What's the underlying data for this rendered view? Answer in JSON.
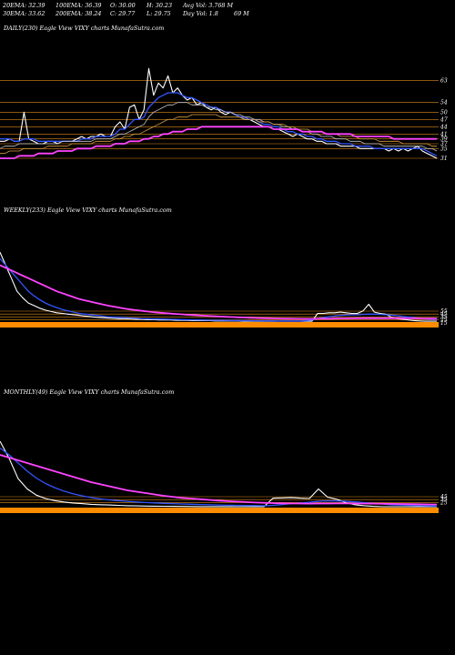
{
  "header": {
    "ema20": "20EMA: 32.39",
    "ema100": "100EMA: 36.39",
    "open": "O: 30.00",
    "high": "H: 30.23",
    "avgvol": "Avg Vol: 3.768 M",
    "ema30": "30EMA: 33.62",
    "ema200": "200EMA: 38.24",
    "close": "C: 29.77",
    "low": "L: 29.75",
    "dayvol": "Day Vol: 1.8",
    "dayvol_unit": "69 M"
  },
  "colors": {
    "price": "#ffffff",
    "ema_fast": "#3355ff",
    "ema_mid": "#c8c8c8",
    "ema_slow": "#d9a040",
    "ema_200": "#ff44ff",
    "levels": "#e08a1a",
    "volume": "#ff8c00"
  },
  "chart_data": [
    {
      "type": "line",
      "title": "DAILY(230) Eagle  View  VIXY charts MunafaSutra.com",
      "level_labels": [
        "63",
        "54",
        "50",
        "47",
        "44",
        "41",
        "39",
        "37",
        "35",
        "31"
      ],
      "levels": [
        63,
        54,
        50,
        47,
        44,
        41,
        39,
        37,
        35,
        31
      ],
      "ylim": [
        28,
        70
      ],
      "series": [
        {
          "key": "price",
          "values": [
            38,
            38,
            39,
            38,
            38,
            50,
            39,
            38,
            37,
            37,
            38,
            38,
            37,
            38,
            38,
            38,
            39,
            40,
            39,
            40,
            40,
            41,
            40,
            40,
            44,
            46,
            43,
            52,
            53,
            47,
            51,
            68,
            57,
            62,
            60,
            65,
            58,
            60,
            57,
            55,
            56,
            53,
            54,
            52,
            51,
            52,
            50,
            49,
            50,
            49,
            48,
            47,
            47,
            46,
            45,
            44,
            44,
            43,
            43,
            42,
            41,
            40,
            41,
            40,
            39,
            39,
            38,
            38,
            37,
            37,
            37,
            36,
            36,
            36,
            36,
            35,
            35,
            35,
            35,
            35,
            35,
            34,
            35,
            34,
            35,
            34,
            35,
            36,
            34,
            33,
            32,
            31
          ]
        },
        {
          "key": "ema_fast",
          "values": [
            39,
            39,
            39,
            38,
            38,
            39,
            39,
            39,
            38,
            38,
            38,
            38,
            38,
            38,
            38,
            38,
            38,
            39,
            39,
            39,
            40,
            40,
            40,
            40,
            41,
            43,
            43,
            45,
            47,
            47,
            48,
            52,
            54,
            56,
            57,
            58,
            58,
            58,
            57,
            56,
            56,
            55,
            54,
            53,
            52,
            52,
            51,
            50,
            50,
            49,
            48,
            48,
            47,
            47,
            46,
            45,
            45,
            44,
            44,
            43,
            42,
            42,
            41,
            41,
            40,
            40,
            39,
            39,
            38,
            38,
            38,
            37,
            37,
            37,
            36,
            36,
            36,
            36,
            35,
            35,
            35,
            35,
            35,
            35,
            35,
            35,
            35,
            35,
            35,
            34,
            33,
            32
          ]
        },
        {
          "key": "ema_mid",
          "values": [
            35,
            36,
            36,
            36,
            37,
            37,
            37,
            37,
            37,
            37,
            37,
            37,
            37,
            38,
            38,
            38,
            38,
            38,
            38,
            38,
            39,
            39,
            39,
            39,
            40,
            41,
            41,
            42,
            43,
            44,
            45,
            48,
            50,
            51,
            52,
            53,
            53,
            54,
            54,
            54,
            53,
            53,
            53,
            52,
            52,
            51,
            51,
            50,
            50,
            49,
            49,
            48,
            48,
            47,
            47,
            46,
            46,
            45,
            45,
            44,
            44,
            43,
            43,
            42,
            42,
            41,
            41,
            40,
            40,
            40,
            39,
            39,
            39,
            38,
            38,
            38,
            37,
            37,
            37,
            37,
            36,
            36,
            36,
            36,
            36,
            36,
            36,
            36,
            36,
            35,
            35,
            34
          ]
        },
        {
          "key": "ema_slow",
          "values": [
            33,
            33,
            34,
            34,
            34,
            35,
            35,
            35,
            35,
            35,
            36,
            36,
            36,
            36,
            36,
            37,
            37,
            37,
            37,
            37,
            38,
            38,
            38,
            38,
            39,
            39,
            40,
            40,
            41,
            41,
            42,
            43,
            44,
            45,
            46,
            47,
            47,
            48,
            48,
            48,
            49,
            49,
            49,
            49,
            49,
            49,
            48,
            48,
            48,
            48,
            48,
            47,
            47,
            47,
            46,
            46,
            46,
            45,
            45,
            45,
            44,
            44,
            43,
            43,
            43,
            42,
            42,
            42,
            41,
            41,
            41,
            40,
            40,
            40,
            40,
            39,
            39,
            39,
            39,
            38,
            38,
            38,
            38,
            38,
            37,
            37,
            37,
            37,
            37,
            37,
            36,
            36
          ]
        },
        {
          "key": "ema_200",
          "values": [
            31,
            31,
            31,
            31,
            32,
            32,
            32,
            32,
            33,
            33,
            33,
            33,
            34,
            34,
            34,
            34,
            35,
            35,
            35,
            35,
            36,
            36,
            36,
            36,
            37,
            37,
            37,
            38,
            38,
            38,
            39,
            39,
            40,
            40,
            41,
            41,
            42,
            42,
            42,
            43,
            43,
            43,
            44,
            44,
            44,
            44,
            44,
            44,
            44,
            44,
            44,
            44,
            44,
            44,
            44,
            44,
            44,
            43,
            43,
            43,
            43,
            43,
            43,
            42,
            42,
            42,
            42,
            42,
            41,
            41,
            41,
            41,
            41,
            41,
            40,
            40,
            40,
            40,
            40,
            40,
            40,
            40,
            39,
            39,
            39,
            39,
            39,
            39,
            39,
            39,
            39,
            39
          ]
        }
      ]
    },
    {
      "type": "line",
      "title": "WEEKLY(233) Eagle  View  VIXY charts MunafaSutra.com",
      "level_labels": [
        "55",
        "45",
        "35",
        "25",
        "15"
      ],
      "levels": [
        55,
        45,
        35,
        25,
        15
      ],
      "ylim": [
        0,
        1200
      ],
      "series": [
        {
          "key": "price",
          "values": [
            1100,
            900,
            700,
            500,
            400,
            320,
            280,
            240,
            210,
            190,
            170,
            160,
            150,
            140,
            130,
            120,
            110,
            100,
            95,
            90,
            85,
            80,
            80,
            75,
            70,
            70,
            65,
            65,
            60,
            60,
            60,
            55,
            55,
            55,
            50,
            50,
            50,
            50,
            45,
            45,
            45,
            45,
            45,
            40,
            40,
            40,
            40,
            40,
            40,
            40,
            40,
            40,
            40,
            40,
            40,
            40,
            160,
            160,
            170,
            170,
            180,
            170,
            160,
            160,
            200,
            300,
            180,
            160,
            150,
            100,
            80,
            70,
            60,
            50,
            45,
            40,
            40,
            40
          ]
        },
        {
          "key": "ema_fast",
          "values": [
            1000,
            900,
            800,
            700,
            600,
            500,
            430,
            370,
            320,
            280,
            250,
            220,
            200,
            180,
            160,
            150,
            140,
            130,
            120,
            110,
            105,
            100,
            95,
            90,
            85,
            80,
            78,
            76,
            74,
            72,
            70,
            68,
            66,
            64,
            62,
            60,
            58,
            56,
            55,
            54,
            53,
            52,
            51,
            50,
            49,
            48,
            47,
            46,
            46,
            45,
            45,
            44,
            44,
            44,
            50,
            60,
            80,
            95,
            110,
            120,
            130,
            135,
            140,
            140,
            145,
            150,
            150,
            145,
            140,
            135,
            125,
            115,
            105,
            95,
            85,
            75,
            70,
            65
          ]
        },
        {
          "key": "ema_200",
          "values": [
            900,
            860,
            820,
            780,
            740,
            700,
            660,
            620,
            580,
            540,
            500,
            470,
            440,
            410,
            380,
            360,
            340,
            320,
            300,
            280,
            265,
            250,
            235,
            220,
            210,
            200,
            190,
            180,
            172,
            165,
            158,
            152,
            146,
            140,
            135,
            130,
            125,
            120,
            116,
            112,
            108,
            104,
            100,
            97,
            94,
            91,
            88,
            86,
            84,
            82,
            80,
            79,
            78,
            77,
            77,
            77,
            78,
            79,
            80,
            81,
            82,
            83,
            84,
            85,
            86,
            87,
            87,
            87,
            87,
            87,
            86,
            86,
            85,
            84,
            83,
            82,
            81,
            80
          ]
        }
      ]
    },
    {
      "type": "line",
      "title": "MONTHLY(49) Eagle  View  VIXY charts MunafaSutra.com",
      "level_labels": [
        "45",
        "35",
        "25"
      ],
      "levels": [
        45,
        35,
        25
      ],
      "ylim": [
        0,
        1200
      ],
      "series": [
        {
          "key": "price",
          "values": [
            1000,
            750,
            450,
            300,
            210,
            160,
            130,
            110,
            95,
            85,
            75,
            70,
            65,
            60,
            55,
            52,
            50,
            48,
            46,
            45,
            44,
            43,
            42,
            42,
            41,
            41,
            40,
            40,
            40,
            40,
            165,
            170,
            175,
            165,
            160,
            300,
            180,
            150,
            100,
            70,
            55,
            45,
            40,
            40,
            40,
            40,
            40,
            40,
            40
          ]
        },
        {
          "key": "ema_fast",
          "values": [
            900,
            800,
            680,
            560,
            460,
            380,
            320,
            270,
            230,
            200,
            175,
            155,
            140,
            128,
            118,
            110,
            102,
            96,
            90,
            85,
            80,
            76,
            72,
            68,
            65,
            62,
            60,
            58,
            56,
            54,
            60,
            72,
            85,
            95,
            105,
            120,
            125,
            125,
            120,
            112,
            100,
            90,
            80,
            70,
            65,
            60,
            55,
            52,
            50
          ]
        },
        {
          "key": "ema_200",
          "values": [
            800,
            760,
            720,
            680,
            640,
            600,
            560,
            520,
            480,
            440,
            400,
            370,
            340,
            310,
            280,
            260,
            240,
            220,
            200,
            185,
            170,
            160,
            150,
            140,
            130,
            122,
            115,
            108,
            102,
            97,
            93,
            90,
            88,
            86,
            85,
            86,
            87,
            88,
            88,
            87,
            86,
            85,
            84,
            82,
            80,
            78,
            76,
            74,
            72
          ]
        }
      ]
    }
  ]
}
